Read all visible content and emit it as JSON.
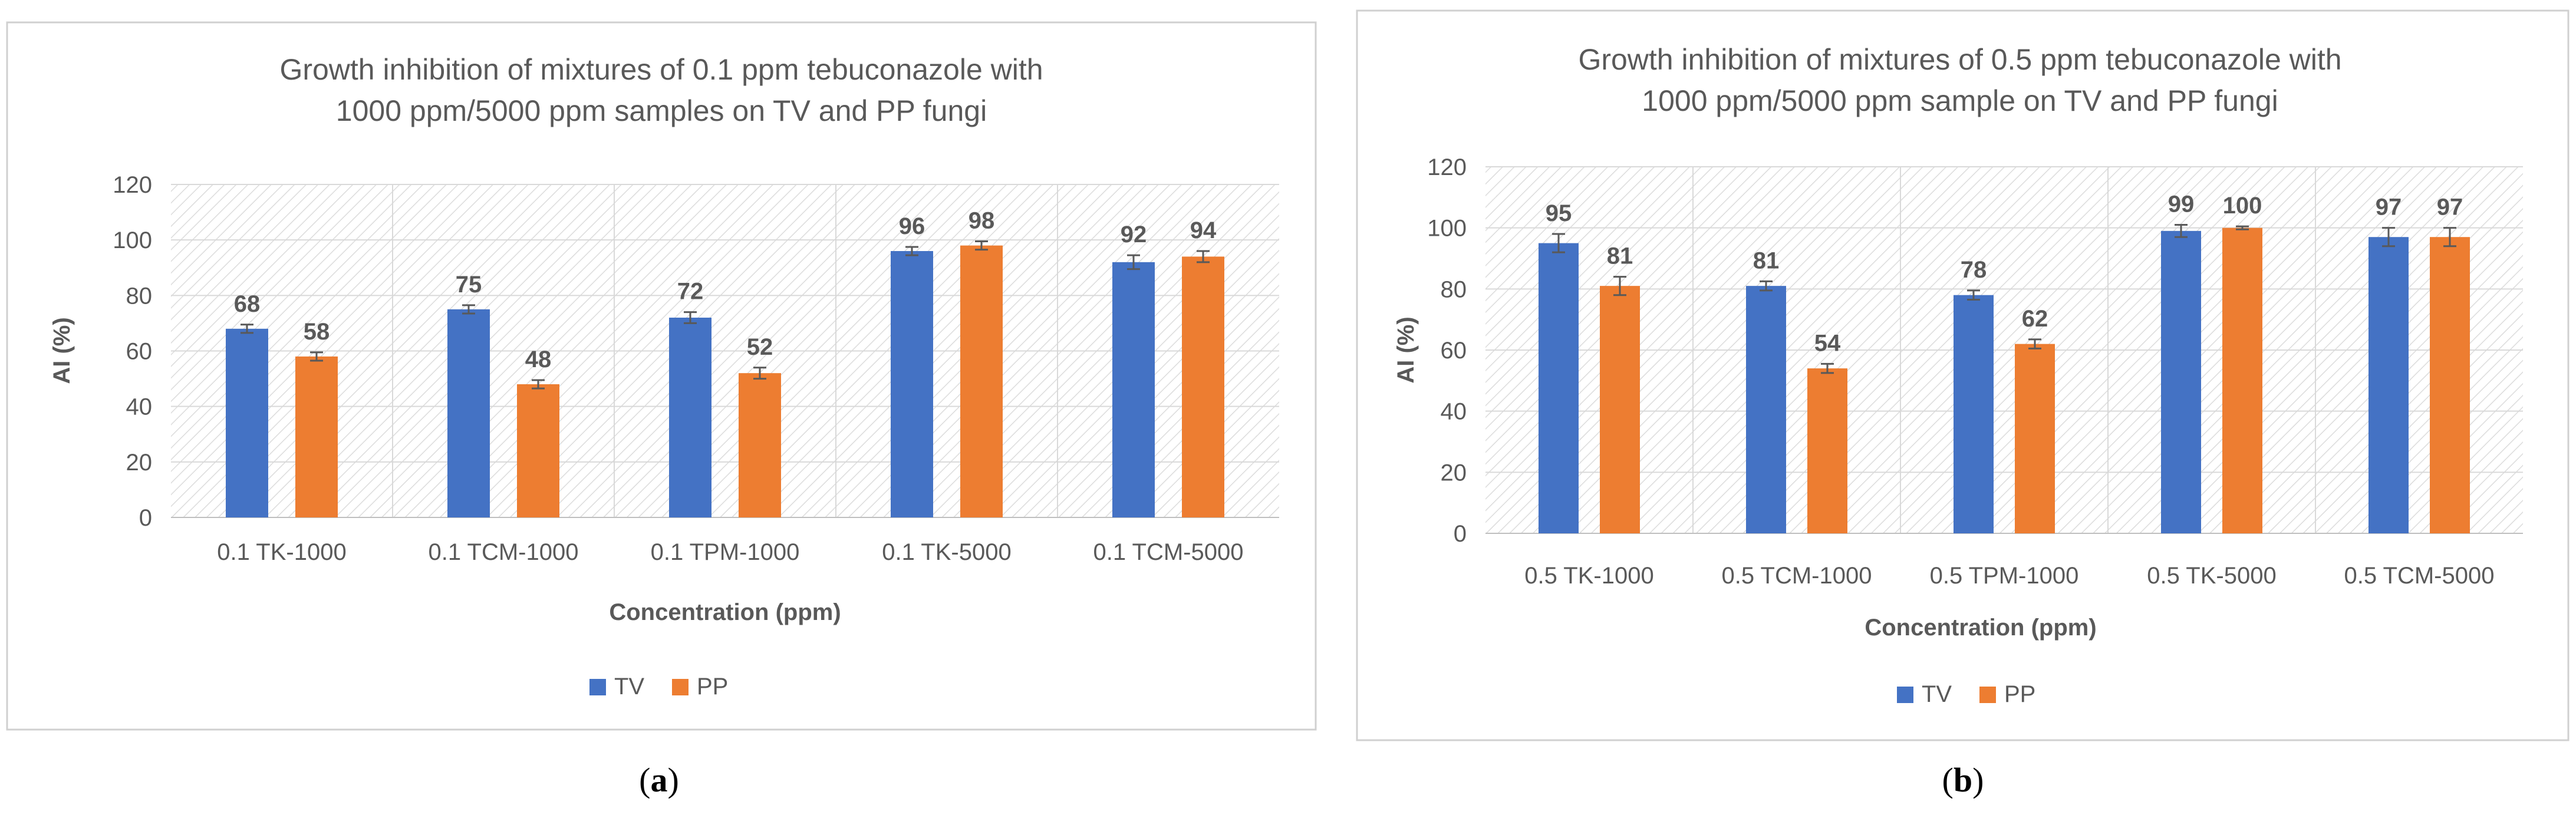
{
  "panels": [
    {
      "caption_letter": "a",
      "chart_data": {
        "type": "bar",
        "title_lines": [
          "Growth inhibition of mixtures of 0.1 ppm tebuconazole with",
          "1000 ppm/5000 ppm samples on TV and PP fungi"
        ],
        "categories": [
          "0.1 TK-1000",
          "0.1 TCM-1000",
          "0.1 TPM-1000",
          "0.1 TK-5000",
          "0.1 TCM-5000"
        ],
        "series": [
          {
            "name": "TV",
            "values": [
              68,
              75,
              72,
              96,
              92
            ],
            "labels": [
              "68",
              "75",
              "72",
              "96",
              "92"
            ],
            "errors": [
              1.5,
              1.5,
              2,
              1.5,
              2.5
            ]
          },
          {
            "name": "PP",
            "values": [
              58,
              48,
              52,
              98,
              94
            ],
            "labels": [
              "58",
              "48",
              "52",
              "98",
              "94"
            ],
            "errors": [
              1.5,
              1.5,
              2,
              1.5,
              2
            ]
          }
        ],
        "xlabel": "Concentration (ppm)",
        "ylabel": "AI (%)",
        "ylim": [
          0,
          120
        ],
        "yticks": [
          "0",
          "20",
          "40",
          "60",
          "80",
          "100",
          "120"
        ],
        "legend_position": "bottom-center",
        "colors": {
          "TV": "#4472C4",
          "PP": "#ED7D31"
        }
      }
    },
    {
      "caption_letter": "b",
      "chart_data": {
        "type": "bar",
        "title_lines": [
          "Growth inhibition of mixtures of 0.5 ppm tebuconazole with",
          "1000 ppm/5000 ppm sample on TV and PP fungi"
        ],
        "categories": [
          "0.5 TK-1000",
          "0.5 TCM-1000",
          "0.5 TPM-1000",
          "0.5 TK-5000",
          "0.5 TCM-5000"
        ],
        "series": [
          {
            "name": "TV",
            "values": [
              95,
              81,
              78,
              99,
              97
            ],
            "labels": [
              "95",
              "81",
              "78",
              "99",
              "97"
            ],
            "errors": [
              3,
              1.5,
              1.5,
              2,
              3
            ]
          },
          {
            "name": "PP",
            "values": [
              81,
              54,
              62,
              100,
              97
            ],
            "labels": [
              "81",
              "54",
              "62",
              "100",
              "97"
            ],
            "errors": [
              3,
              1.5,
              1.5,
              0.5,
              3
            ]
          }
        ],
        "xlabel": "Concentration (ppm)",
        "ylabel": "AI (%)",
        "ylim": [
          0,
          120
        ],
        "yticks": [
          "0",
          "20",
          "40",
          "60",
          "80",
          "100",
          "120"
        ],
        "legend_position": "bottom-center",
        "colors": {
          "TV": "#4472C4",
          "PP": "#ED7D31"
        }
      }
    }
  ]
}
